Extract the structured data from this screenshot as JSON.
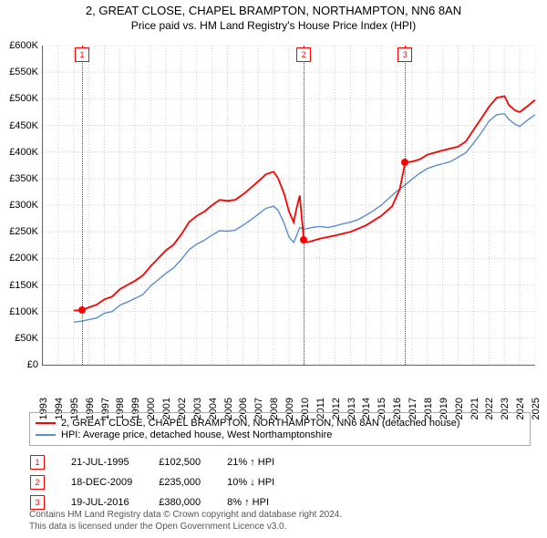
{
  "title_line1": "2, GREAT CLOSE, CHAPEL BRAMPTON, NORTHAMPTON, NN6 8AN",
  "title_line2": "Price paid vs. HM Land Registry's House Price Index (HPI)",
  "chart": {
    "type": "line",
    "x_start_year": 1993,
    "x_end_year": 2025,
    "ylim": [
      0,
      600
    ],
    "ytick_step": 50,
    "currency_prefix": "£",
    "currency_suffix": "K",
    "grid_color": "#cccccc",
    "background_color": "#ffffff",
    "series": [
      {
        "name": "2, GREAT CLOSE, CHAPEL BRAMPTON, NORTHAMPTON, NN6 8AN (detached house)",
        "color": "#ff0000",
        "width": 1.8,
        "points": [
          [
            1995.0,
            102
          ],
          [
            1995.55,
            102.5
          ],
          [
            1996,
            108
          ],
          [
            1996.5,
            113
          ],
          [
            1997,
            123
          ],
          [
            1997.5,
            128
          ],
          [
            1998,
            142
          ],
          [
            1998.5,
            150
          ],
          [
            1999,
            158
          ],
          [
            1999.5,
            168
          ],
          [
            2000,
            185
          ],
          [
            2000.5,
            200
          ],
          [
            2001,
            215
          ],
          [
            2001.5,
            226
          ],
          [
            2002,
            245
          ],
          [
            2002.5,
            268
          ],
          [
            2003,
            280
          ],
          [
            2003.5,
            288
          ],
          [
            2004,
            300
          ],
          [
            2004.5,
            310
          ],
          [
            2005,
            308
          ],
          [
            2005.5,
            310
          ],
          [
            2006,
            320
          ],
          [
            2006.5,
            332
          ],
          [
            2007,
            345
          ],
          [
            2007.5,
            358
          ],
          [
            2008,
            363
          ],
          [
            2008.3,
            350
          ],
          [
            2008.7,
            320
          ],
          [
            2009,
            288
          ],
          [
            2009.3,
            268
          ],
          [
            2009.5,
            295
          ],
          [
            2009.7,
            318
          ],
          [
            2009.96,
            235
          ],
          [
            2010.2,
            230
          ],
          [
            2010.4,
            232
          ],
          [
            2011,
            237
          ],
          [
            2012,
            243
          ],
          [
            2013,
            250
          ],
          [
            2014,
            262
          ],
          [
            2015,
            280
          ],
          [
            2015.7,
            298
          ],
          [
            2016.2,
            330
          ],
          [
            2016.55,
            380
          ],
          [
            2017,
            382
          ],
          [
            2017.5,
            386
          ],
          [
            2018,
            395
          ],
          [
            2019,
            403
          ],
          [
            2020,
            410
          ],
          [
            2020.5,
            420
          ],
          [
            2021,
            442
          ],
          [
            2021.5,
            463
          ],
          [
            2022,
            485
          ],
          [
            2022.5,
            502
          ],
          [
            2023,
            505
          ],
          [
            2023.3,
            488
          ],
          [
            2023.7,
            478
          ],
          [
            2024,
            475
          ],
          [
            2024.5,
            486
          ],
          [
            2025,
            498
          ]
        ]
      },
      {
        "name": "HPI: Average price, detached house, West Northamptonshire",
        "color": "#5b8ecf",
        "width": 1.4,
        "points": [
          [
            1995.0,
            80
          ],
          [
            1995.5,
            82
          ],
          [
            1996,
            85
          ],
          [
            1996.5,
            88
          ],
          [
            1997,
            97
          ],
          [
            1997.5,
            100
          ],
          [
            1998,
            112
          ],
          [
            1998.5,
            118
          ],
          [
            1999,
            125
          ],
          [
            1999.5,
            132
          ],
          [
            2000,
            148
          ],
          [
            2000.5,
            160
          ],
          [
            2001,
            172
          ],
          [
            2001.5,
            182
          ],
          [
            2002,
            198
          ],
          [
            2002.5,
            216
          ],
          [
            2003,
            227
          ],
          [
            2003.5,
            234
          ],
          [
            2004,
            244
          ],
          [
            2004.5,
            252
          ],
          [
            2005,
            251
          ],
          [
            2005.5,
            253
          ],
          [
            2006,
            262
          ],
          [
            2006.5,
            272
          ],
          [
            2007,
            283
          ],
          [
            2007.5,
            294
          ],
          [
            2008,
            298
          ],
          [
            2008.3,
            290
          ],
          [
            2008.7,
            265
          ],
          [
            2009,
            240
          ],
          [
            2009.3,
            230
          ],
          [
            2009.5,
            243
          ],
          [
            2009.7,
            258
          ],
          [
            2010,
            255
          ],
          [
            2010.5,
            258
          ],
          [
            2011,
            260
          ],
          [
            2011.5,
            258
          ],
          [
            2012,
            261
          ],
          [
            2012.5,
            265
          ],
          [
            2013,
            268
          ],
          [
            2013.5,
            273
          ],
          [
            2014,
            281
          ],
          [
            2014.5,
            290
          ],
          [
            2015,
            300
          ],
          [
            2015.5,
            313
          ],
          [
            2016,
            326
          ],
          [
            2016.5,
            337
          ],
          [
            2017,
            349
          ],
          [
            2017.5,
            360
          ],
          [
            2018,
            369
          ],
          [
            2018.5,
            374
          ],
          [
            2019,
            378
          ],
          [
            2019.5,
            382
          ],
          [
            2020,
            390
          ],
          [
            2020.5,
            399
          ],
          [
            2021,
            417
          ],
          [
            2021.5,
            436
          ],
          [
            2022,
            458
          ],
          [
            2022.5,
            470
          ],
          [
            2023,
            472
          ],
          [
            2023.3,
            461
          ],
          [
            2023.7,
            452
          ],
          [
            2024,
            448
          ],
          [
            2024.5,
            460
          ],
          [
            2025,
            470
          ]
        ]
      }
    ],
    "markers": [
      {
        "num": "1",
        "year": 1995.55,
        "value": 102.5
      },
      {
        "num": "2",
        "year": 2009.96,
        "value": 235
      },
      {
        "num": "3",
        "year": 2016.55,
        "value": 380
      }
    ]
  },
  "legend": {
    "items": [
      {
        "color": "#ff0000",
        "label": "2, GREAT CLOSE, CHAPEL BRAMPTON, NORTHAMPTON, NN6 8AN (detached house)"
      },
      {
        "color": "#5b8ecf",
        "label": "HPI: Average price, detached house, West Northamptonshire"
      }
    ]
  },
  "transactions": [
    {
      "num": "1",
      "date": "21-JUL-1995",
      "price": "£102,500",
      "delta": "21% ↑ HPI"
    },
    {
      "num": "2",
      "date": "18-DEC-2009",
      "price": "£235,000",
      "delta": "10% ↓ HPI"
    },
    {
      "num": "3",
      "date": "19-JUL-2016",
      "price": "£380,000",
      "delta": "8% ↑ HPI"
    }
  ],
  "footer_line1": "Contains HM Land Registry data © Crown copyright and database right 2024.",
  "footer_line2": "This data is licensed under the Open Government Licence v3.0."
}
